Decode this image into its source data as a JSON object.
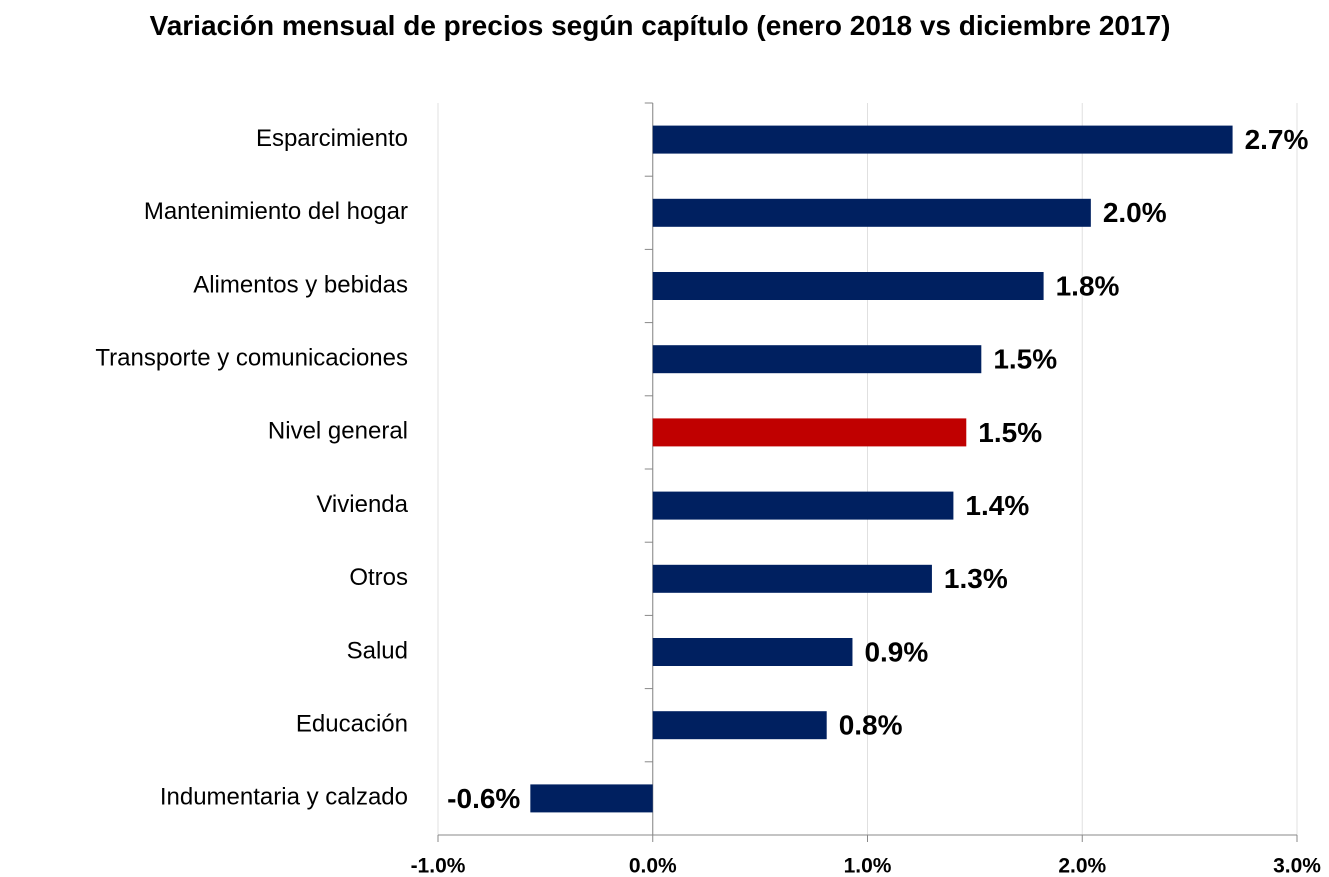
{
  "chart_data": {
    "type": "barh",
    "title": "Variación mensual de precios según capítulo (enero 2018 vs diciembre 2017)",
    "categories": [
      "Esparcimiento",
      "Mantenimiento del hogar",
      "Alimentos y bebidas",
      "Transporte y comunicaciones",
      "Nivel general",
      "Vivienda",
      "Otros",
      "Salud",
      "Educación",
      "Indumentaria y calzado"
    ],
    "values": [
      2.7,
      2.04,
      1.82,
      1.53,
      1.46,
      1.4,
      1.3,
      0.93,
      0.81,
      -0.57
    ],
    "value_labels": [
      "2.7%",
      "2.0%",
      "1.8%",
      "1.5%",
      "1.5%",
      "1.4%",
      "1.3%",
      "0.9%",
      "0.8%",
      "-0.6%"
    ],
    "colors": [
      "#002060",
      "#002060",
      "#002060",
      "#002060",
      "#c00000",
      "#002060",
      "#002060",
      "#002060",
      "#002060",
      "#002060"
    ],
    "xlim": [
      -1.0,
      3.0
    ],
    "xticks": [
      {
        "value": -1.0,
        "label": "-1.0%"
      },
      {
        "value": 0.0,
        "label": "0.0%"
      },
      {
        "value": 1.0,
        "label": "1.0%"
      },
      {
        "value": 2.0,
        "label": "2.0%"
      },
      {
        "value": 3.0,
        "label": "3.0%"
      }
    ],
    "grid": true
  }
}
